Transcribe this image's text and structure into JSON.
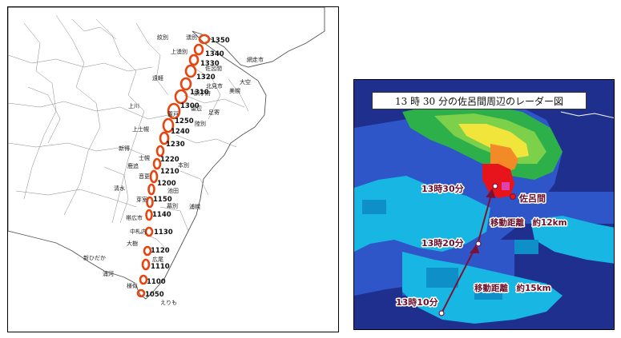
{
  "left_map": {
    "place_labels": [
      "紋別",
      "湧別",
      "上湧別",
      "佐呂間",
      "網走市",
      "北見市",
      "大空",
      "置戸",
      "留辺",
      "訓子府",
      "美幌",
      "遠軽",
      "上川",
      "足寄",
      "陸別",
      "上士幌",
      "新得",
      "士幌",
      "鹿追",
      "本別",
      "音更",
      "清水",
      "池田",
      "芽室",
      "帯広市",
      "幕別",
      "浦幌",
      "中札内",
      "大樹",
      "新ひだか",
      "広尾",
      "浦河",
      "様似",
      "えりも"
    ],
    "time_labels": [
      "1350",
      "1340",
      "1330",
      "1320",
      "1310",
      "1300",
      "1250",
      "1240",
      "1230",
      "1220",
      "1210",
      "1200",
      "1150",
      "1140",
      "1130",
      "1120",
      "1110",
      "1100",
      "1050"
    ],
    "track_color": "#e8440e"
  },
  "radar": {
    "title": "13 時 30 分の佐呂間周辺のレーダー図",
    "labels": {
      "t1330": "13時30分",
      "t1320": "13時20分",
      "t1310": "13時10分",
      "saroma": "佐呂間",
      "move1": "移動距離　約12km",
      "move2": "移動距離　約15km"
    },
    "arrow_color": "#7a1238"
  }
}
